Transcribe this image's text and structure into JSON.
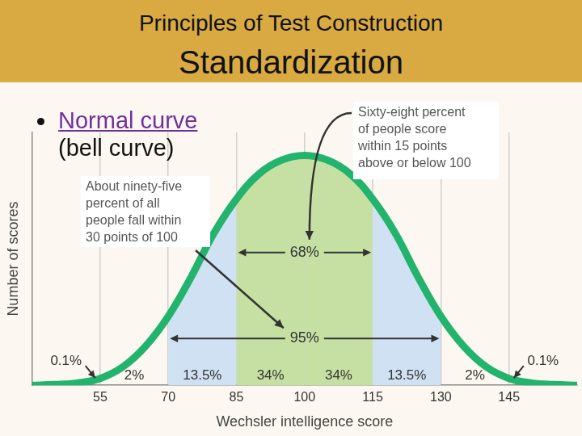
{
  "header": {
    "title": "Principles of Test Construction",
    "subtitle": "Standardization"
  },
  "bullet": {
    "link_text": "Normal curve",
    "text": "(bell curve)"
  },
  "chart_data": {
    "type": "line",
    "x_label": "Wechsler intelligence score",
    "y_label": "Number of scores",
    "x": [
      40,
      45,
      50,
      55,
      60,
      65,
      70,
      75,
      80,
      85,
      90,
      95,
      100,
      105,
      110,
      115,
      120,
      125,
      130,
      135,
      140,
      145,
      150,
      155,
      160
    ],
    "values": [
      0,
      0.3,
      1,
      3,
      8,
      17,
      30,
      47,
      66,
      81,
      92,
      98,
      100,
      98,
      92,
      81,
      66,
      47,
      30,
      17,
      8,
      3,
      1,
      0.3,
      0
    ],
    "color": "#22b36c",
    "marker": "none",
    "xlim": [
      40,
      160
    ],
    "xticks": [
      55,
      70,
      85,
      100,
      115,
      130,
      145
    ],
    "ylim": [
      0,
      110
    ],
    "grid": true,
    "tick_labels": "x",
    "segments": [
      {
        "from": 40,
        "to": 55,
        "value": 0.1,
        "label": "0.1%"
      },
      {
        "from": 55,
        "to": 70,
        "value": 2,
        "label": "2%"
      },
      {
        "from": 70,
        "to": 85,
        "value": 13.5,
        "label": "13.5%",
        "color": "#cfe1f2"
      },
      {
        "from": 85,
        "to": 100,
        "value": 34,
        "label": "34%",
        "color": "#c6e0a4"
      },
      {
        "from": 100,
        "to": 115,
        "value": 34,
        "label": "34%",
        "color": "#c6e0a4"
      },
      {
        "from": 115,
        "to": 130,
        "value": 13.5,
        "label": "13.5%",
        "color": "#cfe1f2"
      },
      {
        "from": 130,
        "to": 145,
        "value": 2,
        "label": "2%"
      },
      {
        "from": 145,
        "to": 160,
        "value": 0.1,
        "label": "0.1%"
      }
    ],
    "ranges": [
      {
        "from": 85,
        "to": 115,
        "value": 68,
        "label": "68%"
      },
      {
        "from": 70,
        "to": 130,
        "value": 95,
        "label": "95%"
      }
    ],
    "callouts": [
      {
        "lines": [
          "Sixty-eight percent",
          "of people score",
          "within 15 points",
          "above or below 100"
        ],
        "points_to": 68
      },
      {
        "lines": [
          "About ninety-five",
          "percent of all",
          "people fall within",
          "30 points of 100"
        ],
        "points_to": 95
      }
    ]
  }
}
